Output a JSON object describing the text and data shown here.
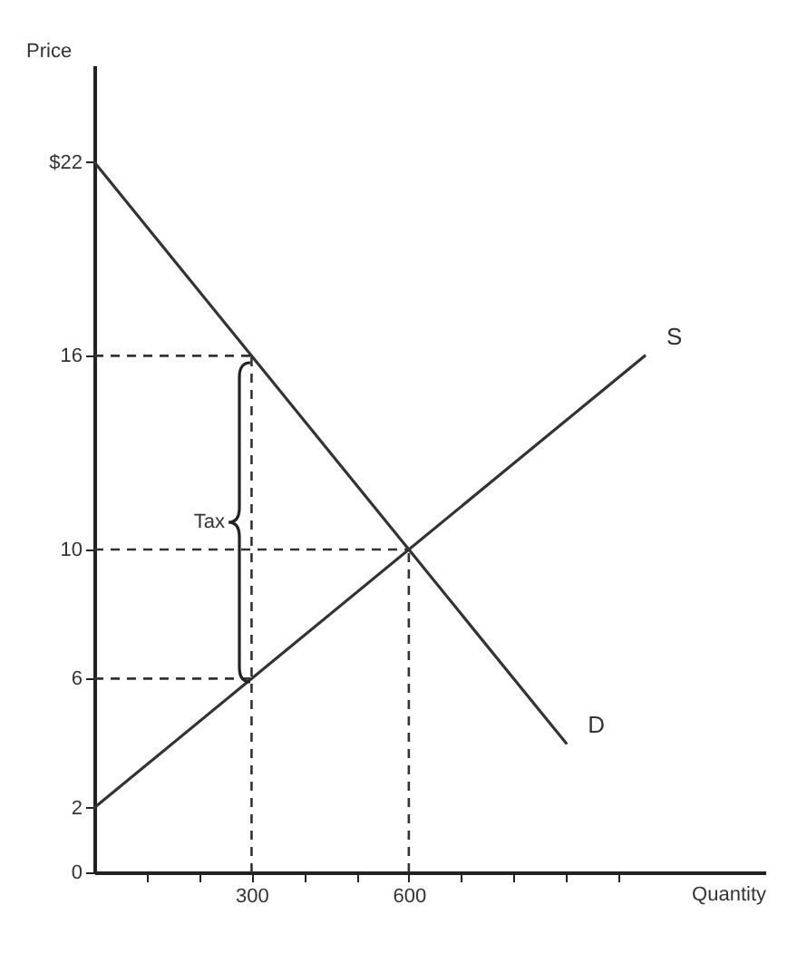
{
  "chart_data": {
    "type": "line",
    "xlabel": "Quantity",
    "ylabel": "Price",
    "xlim": [
      0,
      1280
    ],
    "ylim": [
      0,
      25
    ],
    "xticks": [
      {
        "value": 100,
        "label": null
      },
      {
        "value": 200,
        "label": null
      },
      300,
      {
        "value": 400,
        "label": null
      },
      {
        "value": 500,
        "label": null
      },
      600,
      {
        "value": 700,
        "label": null
      },
      {
        "value": 800,
        "label": null
      },
      {
        "value": 900,
        "label": null
      },
      {
        "value": 1000,
        "label": null
      }
    ],
    "yticks": [
      0,
      2,
      6,
      10,
      16,
      {
        "value": 22,
        "label": "$22"
      }
    ],
    "grid": false,
    "marker": "none",
    "series": [
      {
        "name": "S",
        "color": "#333333",
        "line_style": "solid",
        "x": [
          0,
          1050
        ],
        "values": [
          2,
          16
        ]
      },
      {
        "name": "D",
        "color": "#333333",
        "line_style": "solid",
        "x": [
          0,
          900
        ],
        "values": [
          22,
          4
        ]
      },
      {
        "color": "#333333",
        "line_style": "dashed",
        "x": [
          0,
          300
        ],
        "values": [
          16,
          16
        ]
      },
      {
        "color": "#333333",
        "line_style": "dashed",
        "x": [
          0,
          600
        ],
        "values": [
          10,
          10
        ]
      },
      {
        "color": "#333333",
        "line_style": "dashed",
        "x": [
          0,
          300
        ],
        "values": [
          6,
          6
        ]
      },
      {
        "color": "#333333",
        "line_style": "dashed",
        "x": [
          300,
          300
        ],
        "values": [
          0,
          16
        ]
      },
      {
        "color": "#333333",
        "line_style": "dashed",
        "x": [
          600,
          600
        ],
        "values": [
          0,
          10
        ]
      }
    ],
    "annotations": [
      "Tax"
    ]
  }
}
